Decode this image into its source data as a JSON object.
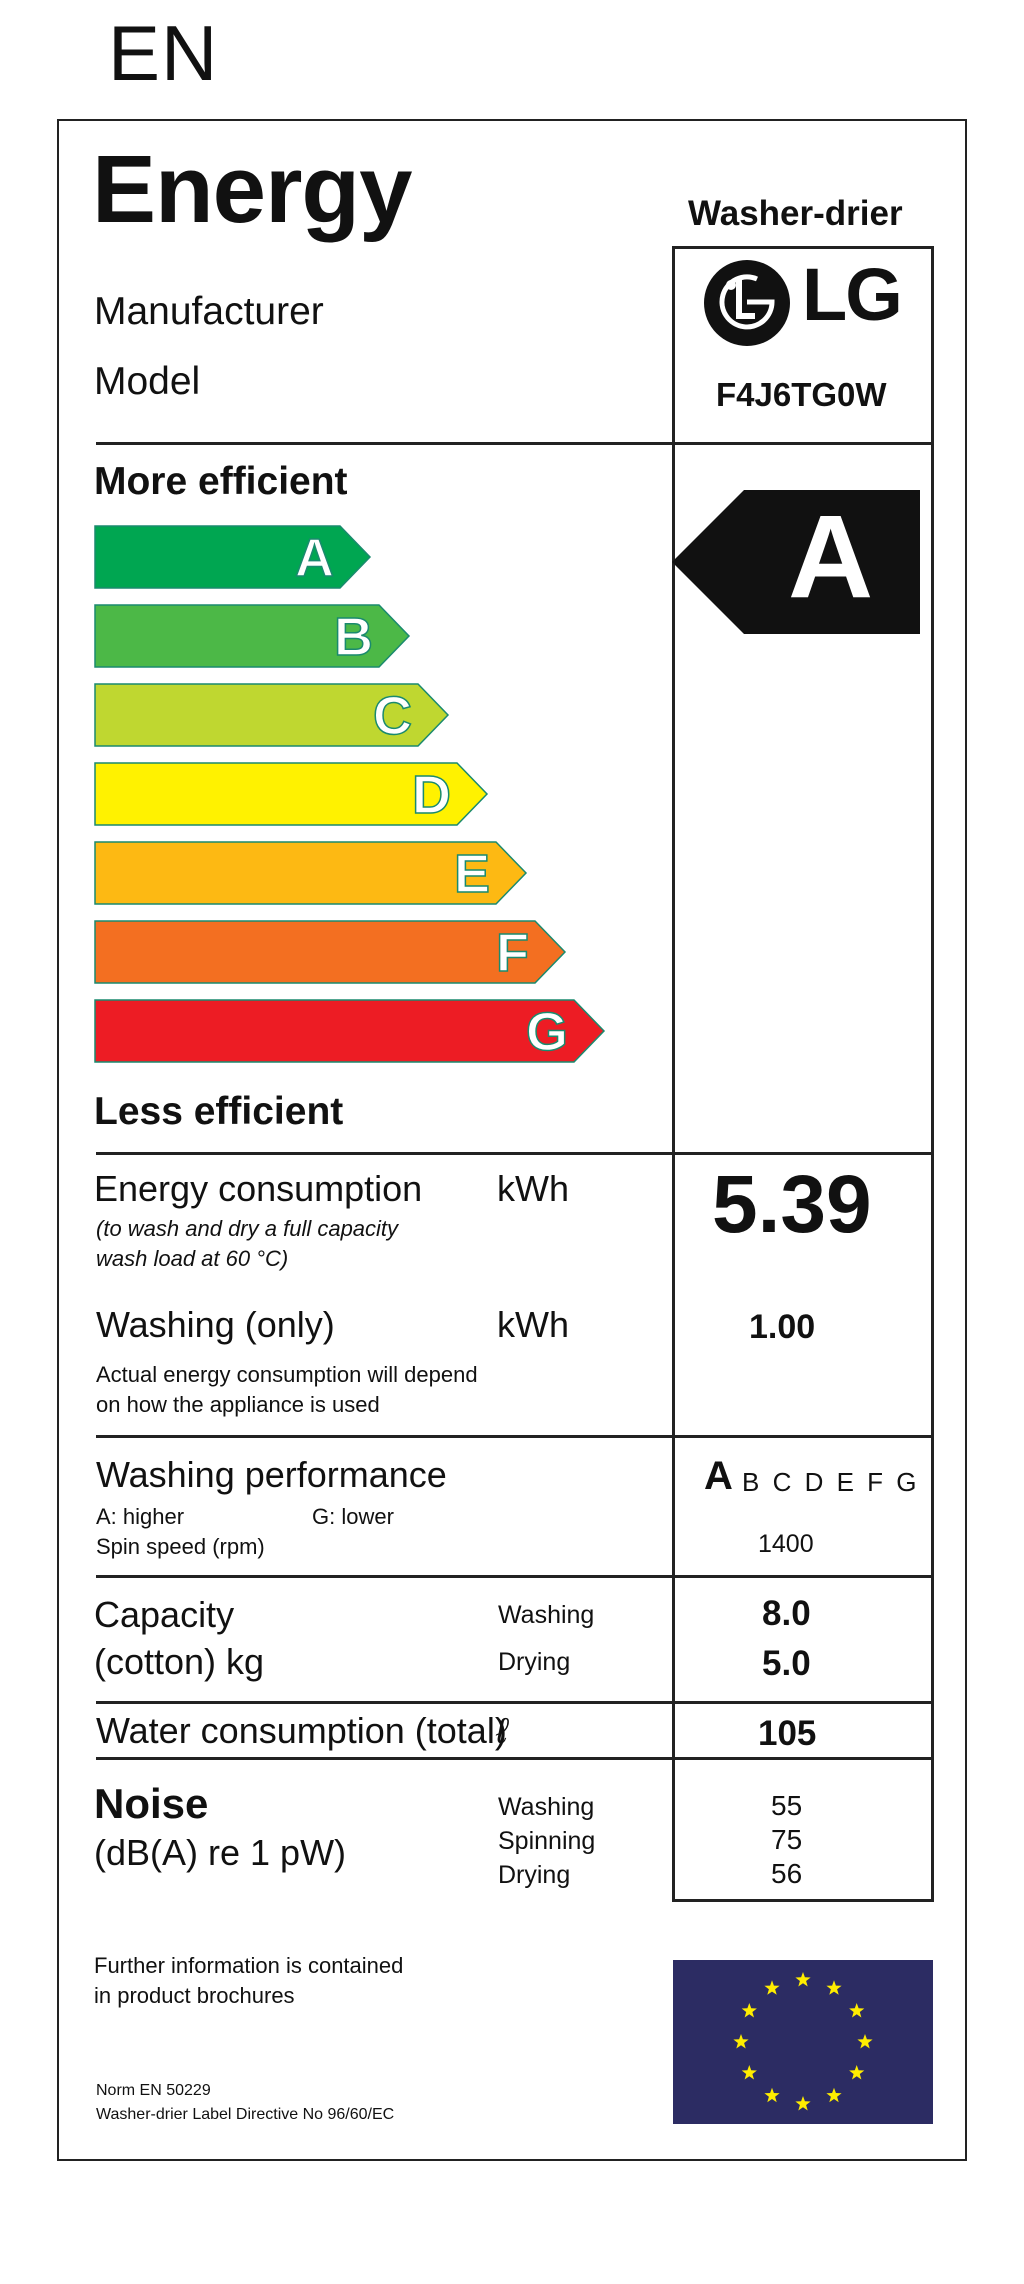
{
  "language_code": "EN",
  "label": {
    "title": "Energy",
    "appliance_type": "Washer-drier",
    "manufacturer_label": "Manufacturer",
    "model_label": "Model",
    "brand_logo_text": "LG",
    "model_value": "F4J6TG0W",
    "more_efficient": "More efficient",
    "less_efficient": "Less efficient",
    "scale": [
      {
        "letter": "A",
        "color": "#00a651"
      },
      {
        "letter": "B",
        "color": "#4cb847"
      },
      {
        "letter": "C",
        "color": "#bfd730"
      },
      {
        "letter": "D",
        "color": "#fff200"
      },
      {
        "letter": "E",
        "color": "#fdb913"
      },
      {
        "letter": "F",
        "color": "#f36f21"
      },
      {
        "letter": "G",
        "color": "#ed1c24"
      }
    ],
    "rating": "A",
    "energy_consumption": {
      "label": "Energy consumption",
      "unit": "kWh",
      "note_line1": "(to wash and dry a full capacity",
      "note_line2": "wash load at 60 °C)",
      "value": "5.39"
    },
    "washing_only": {
      "label": "Washing (only)",
      "unit": "kWh",
      "value": "1.00",
      "note_line1": "Actual energy consumption will depend",
      "note_line2": "on how the appliance is used"
    },
    "washing_performance": {
      "label": "Washing performance",
      "higher": "A: higher",
      "lower": "G: lower",
      "class_highlight": "A",
      "class_rest": "B C D E F G",
      "spin_label": "Spin speed (rpm)",
      "spin_value": "1400"
    },
    "capacity": {
      "label_line1": "Capacity",
      "label_line2": "(cotton) kg",
      "washing_label": "Washing",
      "drying_label": "Drying",
      "washing_value": "8.0",
      "drying_value": "5.0"
    },
    "water": {
      "label": "Water consumption (total)",
      "unit": "ℓ",
      "value": "105"
    },
    "noise": {
      "label": "Noise",
      "unit": "(dB(A) re 1 pW)",
      "washing_label": "Washing",
      "spinning_label": "Spinning",
      "drying_label": "Drying",
      "washing_value": "55",
      "spinning_value": "75",
      "drying_value": "56"
    },
    "further_info_line1": "Further information is contained",
    "further_info_line2": "in product brochures",
    "norm": "Norm EN 50229",
    "directive": "Washer-drier Label Directive No 96/60/EC"
  },
  "colors": {
    "eu_blue": "#2c2c63",
    "eu_star": "#ffed00",
    "arrow_outline": "#1a8a6e"
  }
}
